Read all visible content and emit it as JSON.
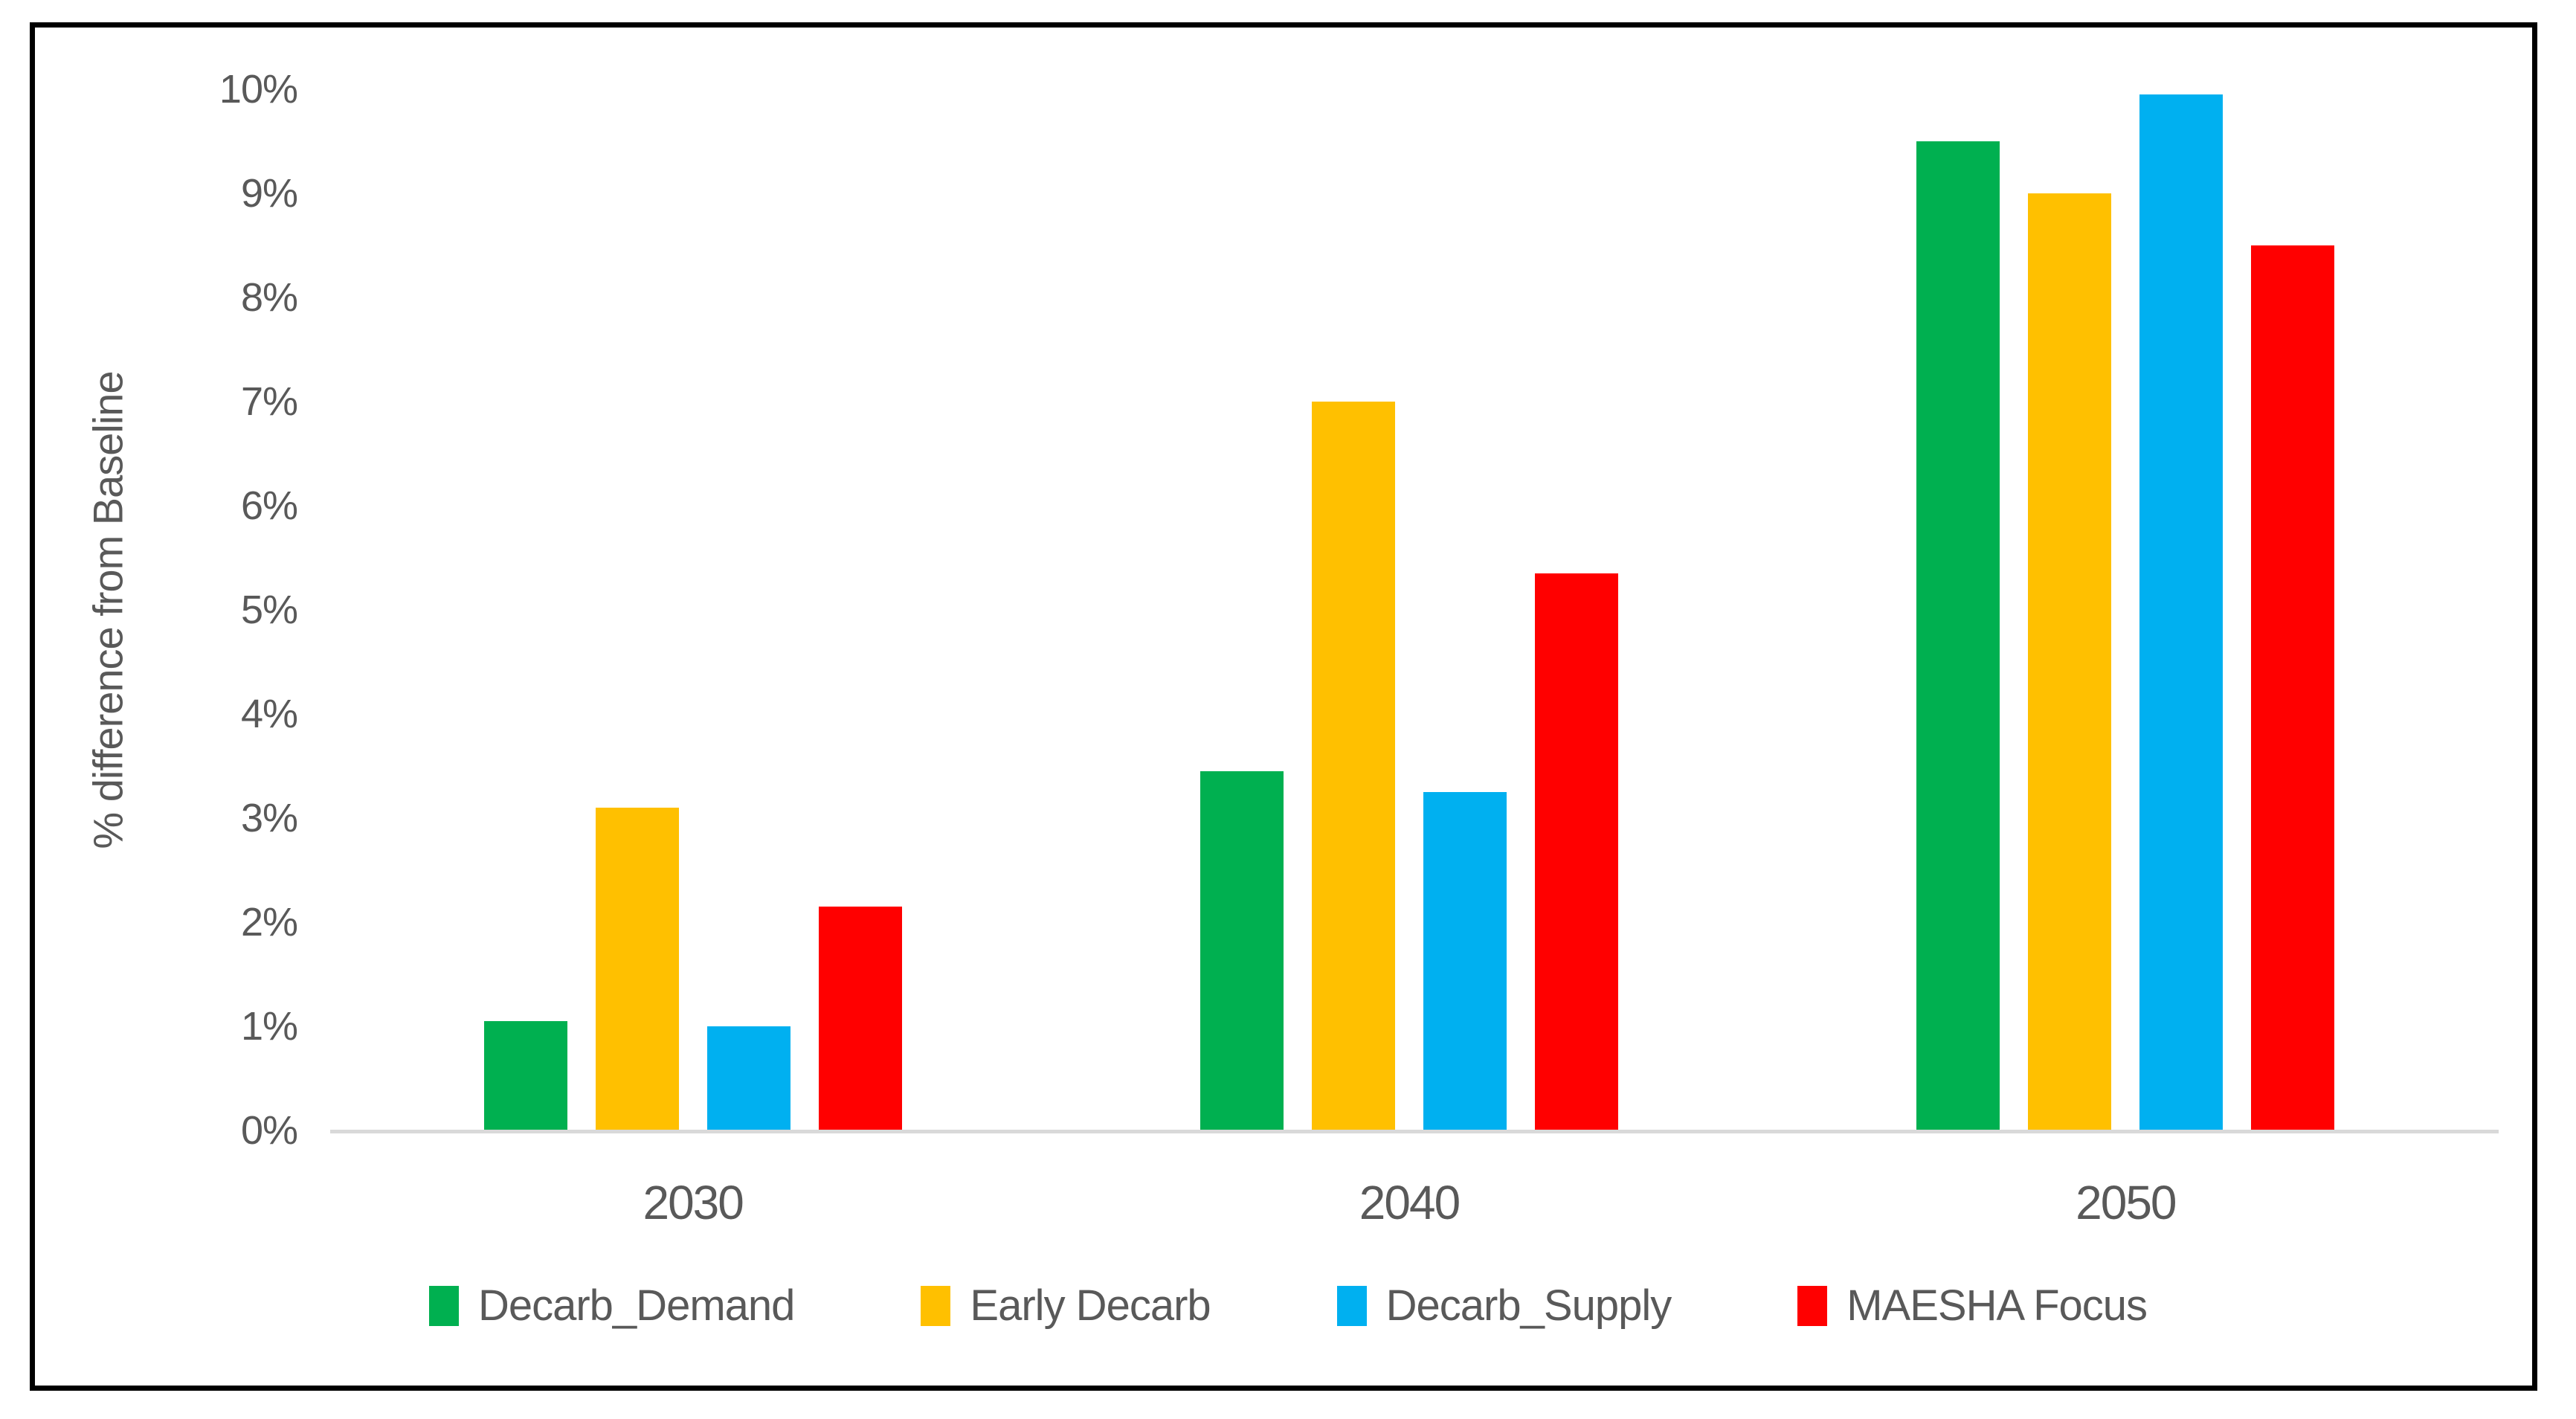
{
  "chart_data": {
    "type": "bar",
    "title": "",
    "xlabel": "",
    "ylabel": "% difference from Baseline",
    "categories": [
      "2030",
      "2040",
      "2050"
    ],
    "series": [
      {
        "name": "Decarb_Demand",
        "color": "#00B050",
        "values": [
          1.05,
          3.45,
          9.5
        ]
      },
      {
        "name": "Early Decarb",
        "color": "#FFC000",
        "values": [
          3.1,
          7.0,
          9.0
        ]
      },
      {
        "name": "Decarb_Supply",
        "color": "#00B0F0",
        "values": [
          1.0,
          3.25,
          9.95
        ]
      },
      {
        "name": "MAESHA Focus",
        "color": "#FF0000",
        "values": [
          2.15,
          5.35,
          8.5
        ]
      }
    ],
    "ylim": [
      0,
      10
    ],
    "ytick_values": [
      0,
      1,
      2,
      3,
      4,
      5,
      6,
      7,
      8,
      9,
      10
    ],
    "ytick_labels": [
      "0%",
      "1%",
      "2%",
      "3%",
      "4%",
      "5%",
      "6%",
      "7%",
      "8%",
      "9%",
      "10%"
    ],
    "grid": false,
    "legend_position": "bottom"
  },
  "colors": {
    "background": "#FFFFFF",
    "frame_border": "#000000",
    "axis_text": "#595959",
    "axis_line": "#D9D9D9"
  }
}
